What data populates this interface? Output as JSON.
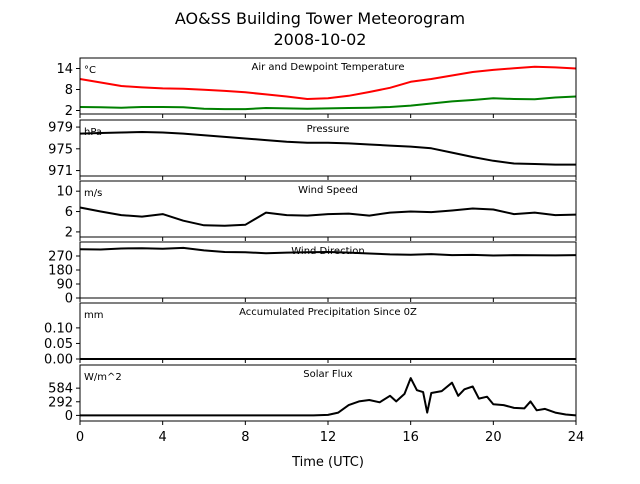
{
  "figure": {
    "title": "AO&SS Building Tower Meteorogram",
    "subtitle": "2008-10-02",
    "xlabel": "Time (UTC)"
  },
  "chart_data": [
    {
      "type": "line",
      "title": "Air and Dewpoint Temperature",
      "unit_label": "°C",
      "x_unit": "hour UTC",
      "xlim": [
        0,
        24
      ],
      "xticks": [
        0,
        4,
        8,
        12,
        16,
        20,
        24
      ],
      "ylim": [
        1,
        17
      ],
      "yticks": [
        2,
        8,
        14
      ],
      "series": [
        {
          "color": "#ff0000",
          "x": [
            0,
            1,
            2,
            3,
            4,
            5,
            6,
            7,
            8,
            9,
            10,
            11,
            12,
            13,
            14,
            15,
            16,
            17,
            18,
            19,
            20,
            21,
            22,
            23,
            24
          ],
          "y": [
            11,
            10,
            9,
            8.6,
            8.3,
            8.2,
            7.9,
            7.6,
            7.2,
            6.6,
            6.0,
            5.3,
            5.5,
            6.2,
            7.3,
            8.5,
            10.2,
            11.0,
            12.0,
            13.0,
            13.6,
            14.1,
            14.5,
            14.3,
            14.0
          ]
        },
        {
          "color": "#008000",
          "x": [
            0,
            1,
            2,
            3,
            4,
            5,
            6,
            7,
            8,
            9,
            10,
            11,
            12,
            13,
            14,
            15,
            16,
            17,
            18,
            19,
            20,
            21,
            22,
            23,
            24
          ],
          "y": [
            3.0,
            2.9,
            2.8,
            3.0,
            3.0,
            2.9,
            2.5,
            2.4,
            2.4,
            2.7,
            2.6,
            2.5,
            2.6,
            2.7,
            2.8,
            3.0,
            3.4,
            4.0,
            4.6,
            5.0,
            5.5,
            5.3,
            5.2,
            5.7,
            6.0
          ]
        }
      ]
    },
    {
      "type": "line",
      "title": "Pressure",
      "unit_label": "hPa",
      "x_unit": "hour UTC",
      "xlim": [
        0,
        24
      ],
      "ylim": [
        970,
        980.3
      ],
      "yticks": [
        971,
        975,
        979
      ],
      "series": [
        {
          "color": "#000000",
          "x": [
            0,
            1,
            2,
            3,
            4,
            5,
            6,
            7,
            8,
            9,
            10,
            11,
            12,
            13,
            14,
            15,
            16,
            17,
            18,
            19,
            20,
            21,
            22,
            23,
            24
          ],
          "y": [
            977.8,
            977.9,
            978.0,
            978.1,
            978.0,
            977.8,
            977.5,
            977.2,
            976.9,
            976.6,
            976.3,
            976.1,
            976.1,
            976.0,
            975.8,
            975.6,
            975.4,
            975.1,
            974.3,
            973.5,
            972.8,
            972.3,
            972.2,
            972.1,
            972.1
          ]
        }
      ]
    },
    {
      "type": "line",
      "title": "Wind Speed",
      "unit_label": "m/s",
      "x_unit": "hour UTC",
      "xlim": [
        0,
        24
      ],
      "ylim": [
        1,
        12
      ],
      "yticks": [
        2,
        6,
        10
      ],
      "series": [
        {
          "color": "#000000",
          "x": [
            0,
            1,
            2,
            3,
            4,
            5,
            6,
            7,
            8,
            9,
            10,
            11,
            12,
            13,
            14,
            15,
            16,
            17,
            18,
            19,
            20,
            21,
            22,
            23,
            24
          ],
          "y": [
            6.8,
            6.0,
            5.3,
            5.0,
            5.5,
            4.2,
            3.3,
            3.2,
            3.4,
            5.8,
            5.3,
            5.2,
            5.5,
            5.6,
            5.2,
            5.8,
            6.0,
            5.9,
            6.2,
            6.6,
            6.4,
            5.5,
            5.8,
            5.3,
            5.4
          ]
        }
      ]
    },
    {
      "type": "line",
      "title": "Wind Direction",
      "x_unit": "hour UTC",
      "xlim": [
        0,
        24
      ],
      "ylim": [
        0,
        360
      ],
      "yticks": [
        0,
        90,
        180,
        270
      ],
      "series": [
        {
          "color": "#000000",
          "x": [
            0,
            1,
            2,
            3,
            4,
            5,
            6,
            7,
            8,
            9,
            10,
            11,
            12,
            13,
            14,
            15,
            16,
            17,
            18,
            19,
            20,
            21,
            22,
            23,
            24
          ],
          "y": [
            314,
            312,
            318,
            320,
            316,
            322,
            306,
            296,
            294,
            288,
            292,
            294,
            296,
            292,
            286,
            280,
            278,
            282,
            276,
            277,
            273,
            276,
            275,
            274,
            276
          ]
        }
      ]
    },
    {
      "type": "line",
      "title": "Accumulated Precipitation Since 0Z",
      "unit_label": "mm",
      "x_unit": "hour UTC",
      "xlim": [
        0,
        24
      ],
      "ylim": [
        0,
        0.18
      ],
      "yticks": [
        0.0,
        0.05,
        0.1
      ],
      "ytick_labels": [
        "0.00",
        "0.05",
        "0.10"
      ],
      "series": [
        {
          "color": "#000000",
          "x": [
            0,
            24
          ],
          "y": [
            0,
            0
          ]
        }
      ]
    },
    {
      "type": "line",
      "title": "Solar Flux",
      "unit_label": "W/m^2",
      "x_unit": "hour UTC",
      "xlim": [
        0,
        24
      ],
      "ylim": [
        -120,
        1080
      ],
      "yticks": [
        0,
        292,
        584
      ],
      "series": [
        {
          "color": "#000000",
          "x": [
            0,
            6,
            11.3,
            12,
            12.5,
            13,
            13.5,
            14,
            14.5,
            15,
            15.3,
            15.7,
            16.0,
            16.3,
            16.6,
            16.8,
            17.0,
            17.5,
            18.0,
            18.3,
            18.6,
            19.0,
            19.3,
            19.7,
            20.0,
            20.5,
            21.0,
            21.5,
            21.8,
            22.1,
            22.5,
            23.0,
            23.5,
            24
          ],
          "y": [
            0,
            0,
            0,
            10,
            60,
            220,
            300,
            330,
            280,
            420,
            300,
            460,
            800,
            540,
            500,
            60,
            480,
            520,
            700,
            420,
            560,
            620,
            360,
            400,
            240,
            220,
            160,
            150,
            300,
            110,
            140,
            60,
            20,
            0
          ]
        }
      ]
    }
  ]
}
